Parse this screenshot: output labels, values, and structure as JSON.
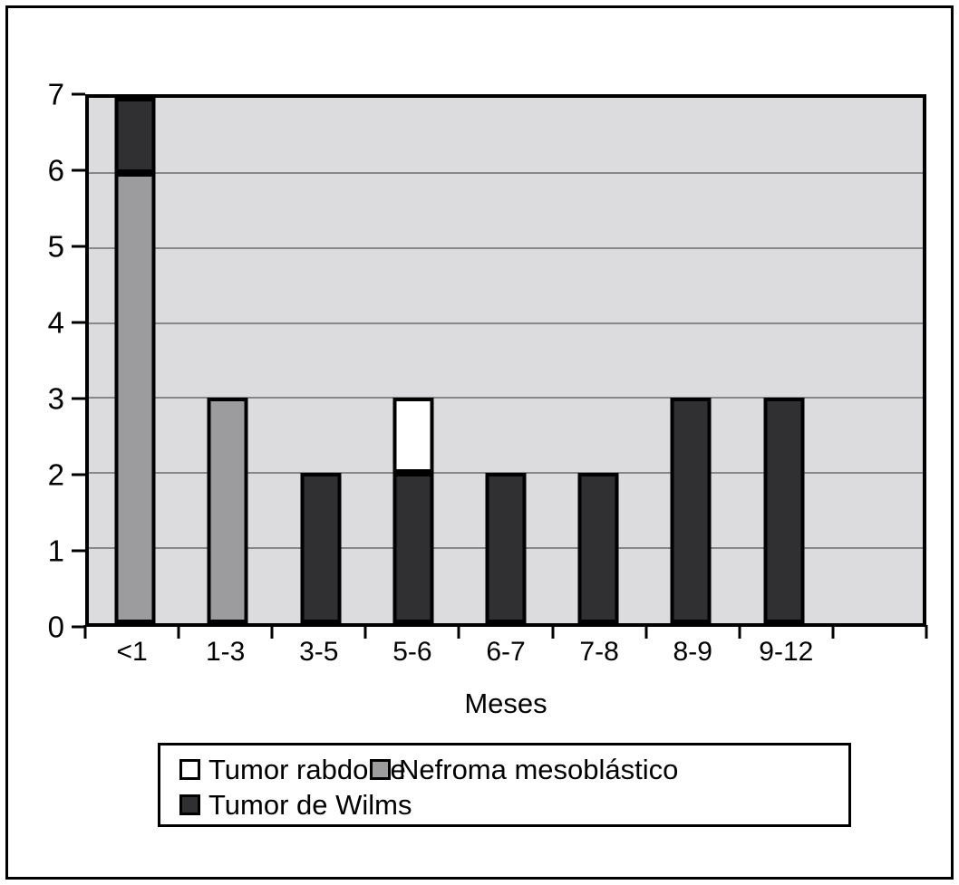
{
  "chart_data": {
    "type": "bar",
    "stacked": true,
    "categories": [
      "<1",
      "1-3",
      "3-5",
      "5-6",
      "6-7",
      "7-8",
      "8-9",
      "9-12"
    ],
    "series": [
      {
        "name": "Nefroma mesoblástico",
        "color": "#9c9c9e",
        "values": [
          6,
          3,
          0,
          0,
          0,
          0,
          0,
          0
        ]
      },
      {
        "name": "Tumor de Wilms",
        "color": "#303032",
        "values": [
          1,
          0,
          2,
          2,
          2,
          2,
          3,
          3
        ]
      },
      {
        "name": "Tumor rabdoide",
        "color": "#ffffff",
        "values": [
          0,
          0,
          0,
          1,
          0,
          0,
          0,
          0
        ]
      }
    ],
    "totals": [
      7,
      3,
      2,
      3,
      2,
      2,
      3,
      3
    ],
    "title": "",
    "xlabel": "Meses",
    "ylabel": "",
    "ylim": [
      0,
      7
    ],
    "yticks": [
      0,
      1,
      2,
      3,
      4,
      5,
      6,
      7
    ],
    "x_slot_count": 9,
    "grid": true,
    "gridline_values": [
      1,
      2,
      3,
      4,
      5,
      6
    ],
    "legend_position": "bottom"
  },
  "legend": {
    "items": [
      {
        "label": "Tumor rabdoide",
        "color": "#ffffff"
      },
      {
        "label": "Nefroma mesoblástico",
        "color": "#9c9c9e"
      },
      {
        "label": "Tumor de Wilms",
        "color": "#303032"
      }
    ]
  },
  "colors": {
    "plot_background": "#dcdcde",
    "gridline": "#87878b",
    "axis": "#000000",
    "bar_border": "#000000",
    "frame_border": "#000000",
    "page_background": "#ffffff"
  }
}
